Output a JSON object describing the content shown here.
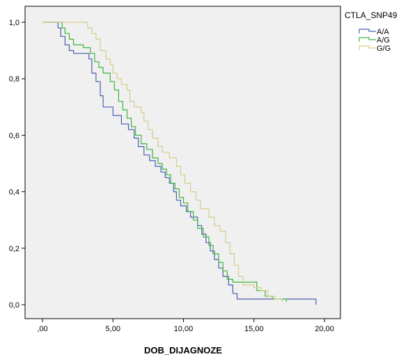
{
  "chart_data": {
    "type": "line",
    "step": true,
    "xlabel": "DOB_DIJAGNOZE",
    "ylabel": "",
    "xlim": [
      0,
      20
    ],
    "ylim": [
      0,
      1
    ],
    "x_ticks": [
      ",00",
      "5,00",
      "10,00",
      "15,00",
      "20,00"
    ],
    "y_ticks": [
      "0,0",
      "0,2",
      "0,4",
      "0,6",
      "0,8",
      "1,0"
    ],
    "plot_background": "#f0f0f0",
    "grid": false,
    "legend": {
      "title": "CTLA_SNP49",
      "position": "top-right-outside"
    },
    "series": [
      {
        "name": "A/A",
        "color": "#4a5fb0",
        "points": [
          [
            0,
            1.0
          ],
          [
            1.0,
            1.0
          ],
          [
            1.1,
            0.98
          ],
          [
            1.3,
            0.95
          ],
          [
            1.6,
            0.92
          ],
          [
            1.9,
            0.9
          ],
          [
            2.2,
            0.89
          ],
          [
            3.3,
            0.87
          ],
          [
            3.5,
            0.82
          ],
          [
            3.8,
            0.79
          ],
          [
            4.1,
            0.74
          ],
          [
            4.3,
            0.7
          ],
          [
            5.0,
            0.67
          ],
          [
            5.6,
            0.64
          ],
          [
            6.1,
            0.62
          ],
          [
            6.5,
            0.59
          ],
          [
            6.8,
            0.56
          ],
          [
            7.2,
            0.53
          ],
          [
            7.6,
            0.51
          ],
          [
            8.0,
            0.49
          ],
          [
            8.4,
            0.47
          ],
          [
            8.7,
            0.45
          ],
          [
            9.0,
            0.43
          ],
          [
            9.3,
            0.4
          ],
          [
            9.5,
            0.37
          ],
          [
            9.8,
            0.35
          ],
          [
            10.2,
            0.33
          ],
          [
            10.5,
            0.31
          ],
          [
            11.0,
            0.28
          ],
          [
            11.3,
            0.25
          ],
          [
            11.6,
            0.22
          ],
          [
            11.9,
            0.19
          ],
          [
            12.2,
            0.16
          ],
          [
            12.5,
            0.13
          ],
          [
            12.8,
            0.1
          ],
          [
            13.2,
            0.07
          ],
          [
            13.5,
            0.04
          ],
          [
            13.8,
            0.02
          ],
          [
            14.5,
            0.02
          ],
          [
            19.4,
            0.02
          ],
          [
            19.4,
            0.0
          ]
        ]
      },
      {
        "name": "A/G",
        "color": "#3eb53e",
        "points": [
          [
            0,
            1.0
          ],
          [
            1.2,
            1.0
          ],
          [
            1.4,
            0.98
          ],
          [
            1.6,
            0.96
          ],
          [
            1.9,
            0.94
          ],
          [
            2.2,
            0.92
          ],
          [
            2.9,
            0.91
          ],
          [
            3.4,
            0.89
          ],
          [
            3.7,
            0.86
          ],
          [
            4.0,
            0.84
          ],
          [
            4.3,
            0.82
          ],
          [
            4.8,
            0.79
          ],
          [
            5.1,
            0.76
          ],
          [
            5.4,
            0.72
          ],
          [
            5.7,
            0.69
          ],
          [
            6.0,
            0.66
          ],
          [
            6.3,
            0.63
          ],
          [
            6.6,
            0.6
          ],
          [
            7.0,
            0.57
          ],
          [
            7.4,
            0.55
          ],
          [
            7.8,
            0.52
          ],
          [
            8.2,
            0.5
          ],
          [
            8.5,
            0.48
          ],
          [
            8.8,
            0.46
          ],
          [
            9.1,
            0.43
          ],
          [
            9.4,
            0.41
          ],
          [
            9.7,
            0.38
          ],
          [
            10.0,
            0.36
          ],
          [
            10.3,
            0.33
          ],
          [
            10.7,
            0.3
          ],
          [
            11.0,
            0.27
          ],
          [
            11.4,
            0.24
          ],
          [
            11.8,
            0.21
          ],
          [
            12.1,
            0.18
          ],
          [
            12.5,
            0.15
          ],
          [
            12.8,
            0.12
          ],
          [
            13.1,
            0.09
          ],
          [
            13.5,
            0.08
          ],
          [
            15.0,
            0.08
          ],
          [
            15.2,
            0.05
          ],
          [
            15.8,
            0.03
          ],
          [
            16.3,
            0.02
          ],
          [
            17.3,
            0.02
          ],
          [
            17.3,
            0.01
          ]
        ]
      },
      {
        "name": "G/G",
        "color": "#d4cc8a",
        "points": [
          [
            0,
            1.0
          ],
          [
            3.0,
            1.0
          ],
          [
            3.2,
            0.98
          ],
          [
            3.5,
            0.96
          ],
          [
            3.8,
            0.94
          ],
          [
            4.1,
            0.9
          ],
          [
            4.5,
            0.87
          ],
          [
            4.8,
            0.85
          ],
          [
            5.0,
            0.82
          ],
          [
            5.3,
            0.8
          ],
          [
            5.6,
            0.78
          ],
          [
            6.0,
            0.76
          ],
          [
            6.2,
            0.72
          ],
          [
            6.5,
            0.7
          ],
          [
            7.0,
            0.68
          ],
          [
            7.2,
            0.65
          ],
          [
            7.5,
            0.62
          ],
          [
            7.8,
            0.59
          ],
          [
            8.2,
            0.56
          ],
          [
            8.5,
            0.54
          ],
          [
            9.0,
            0.52
          ],
          [
            9.5,
            0.49
          ],
          [
            9.8,
            0.46
          ],
          [
            10.1,
            0.43
          ],
          [
            10.5,
            0.4
          ],
          [
            10.9,
            0.37
          ],
          [
            11.2,
            0.34
          ],
          [
            11.8,
            0.31
          ],
          [
            12.2,
            0.28
          ],
          [
            12.6,
            0.26
          ],
          [
            13.0,
            0.22
          ],
          [
            13.3,
            0.18
          ],
          [
            13.6,
            0.14
          ],
          [
            13.9,
            0.1
          ],
          [
            14.2,
            0.07
          ],
          [
            15.0,
            0.06
          ],
          [
            15.5,
            0.05
          ],
          [
            16.0,
            0.03
          ],
          [
            16.5,
            0.02
          ],
          [
            17.0,
            0.02
          ],
          [
            17.0,
            0.01
          ]
        ]
      }
    ]
  }
}
